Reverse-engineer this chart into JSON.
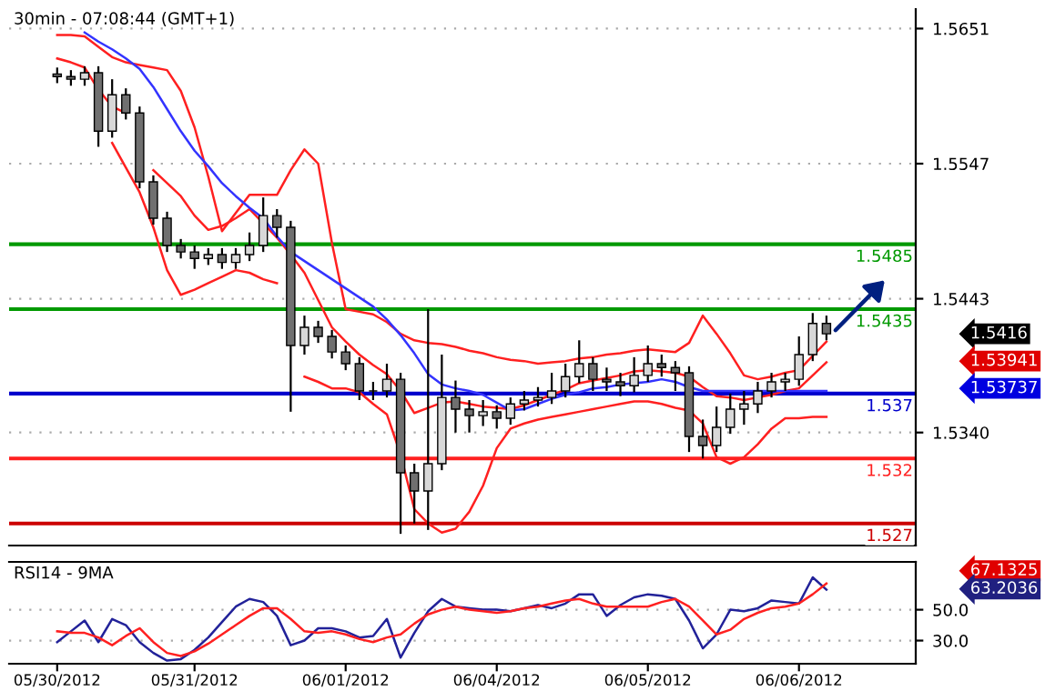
{
  "chart_data": [
    {
      "type": "candlestick",
      "title": "30min - 07:08:44 (GMT+1)",
      "categories": [
        null,
        null,
        null,
        null,
        null,
        null,
        null,
        null,
        null,
        null,
        null,
        null,
        null,
        null,
        null,
        null,
        null,
        null,
        null,
        null,
        null,
        null,
        null,
        null,
        null,
        null,
        null,
        null,
        null,
        null,
        null,
        null,
        null,
        null,
        null,
        null,
        null,
        null,
        null,
        null,
        null,
        null,
        null,
        null,
        null,
        null,
        null,
        null,
        null,
        null,
        null,
        null,
        null,
        null,
        null,
        null,
        null
      ],
      "ohlc": [
        [
          1.5616,
          1.5621,
          1.5609,
          1.5614
        ],
        [
          1.5614,
          1.5619,
          1.5607,
          1.5612
        ],
        [
          1.5612,
          1.5622,
          1.5607,
          1.5617
        ],
        [
          1.5617,
          1.5622,
          1.556,
          1.5572
        ],
        [
          1.5572,
          1.5612,
          1.5567,
          1.56
        ],
        [
          1.56,
          1.5605,
          1.5581,
          1.5586
        ],
        [
          1.5586,
          1.5591,
          1.5528,
          1.5533
        ],
        [
          1.5533,
          1.5538,
          1.55,
          1.5505
        ],
        [
          1.5505,
          1.551,
          1.5479,
          1.5484
        ],
        [
          1.5484,
          1.5489,
          1.5474,
          1.5479
        ],
        [
          1.5479,
          1.5484,
          1.5466,
          1.5474
        ],
        [
          1.5474,
          1.5482,
          1.5469,
          1.5477
        ],
        [
          1.5477,
          1.5482,
          1.5466,
          1.5471
        ],
        [
          1.5471,
          1.5482,
          1.5466,
          1.5477
        ],
        [
          1.5477,
          1.5494,
          1.5472,
          1.5484
        ],
        [
          1.5484,
          1.5521,
          1.5479,
          1.5507
        ],
        [
          1.5507,
          1.5512,
          1.549,
          1.5498
        ],
        [
          1.5498,
          1.5503,
          1.5356,
          1.5407
        ],
        [
          1.5407,
          1.543,
          1.54,
          1.5421
        ],
        [
          1.5421,
          1.5426,
          1.5409,
          1.5414
        ],
        [
          1.5414,
          1.5419,
          1.5397,
          1.5402
        ],
        [
          1.5402,
          1.5407,
          1.5388,
          1.5393
        ],
        [
          1.5393,
          1.5398,
          1.5365,
          1.5372
        ],
        [
          1.5372,
          1.5379,
          1.5365,
          1.5372
        ],
        [
          1.5372,
          1.5393,
          1.5367,
          1.5381
        ],
        [
          1.5381,
          1.5386,
          1.5262,
          1.5309
        ],
        [
          1.5309,
          1.5316,
          1.527,
          1.5295
        ],
        [
          1.5295,
          1.5435,
          1.5265,
          1.5316
        ],
        [
          1.5316,
          1.54,
          1.5311,
          1.5367
        ],
        [
          1.5367,
          1.538,
          1.534,
          1.5358
        ],
        [
          1.5358,
          1.5365,
          1.534,
          1.5353
        ],
        [
          1.5353,
          1.5365,
          1.5345,
          1.5356
        ],
        [
          1.5356,
          1.5361,
          1.5343,
          1.5351
        ],
        [
          1.5351,
          1.5367,
          1.5346,
          1.5362
        ],
        [
          1.5362,
          1.5372,
          1.5357,
          1.5365
        ],
        [
          1.5365,
          1.5375,
          1.536,
          1.5367
        ],
        [
          1.5367,
          1.5386,
          1.5362,
          1.5372
        ],
        [
          1.5372,
          1.5393,
          1.5367,
          1.5383
        ],
        [
          1.5383,
          1.5411,
          1.5378,
          1.5393
        ],
        [
          1.5393,
          1.5398,
          1.5372,
          1.5381
        ],
        [
          1.5381,
          1.539,
          1.5372,
          1.5379
        ],
        [
          1.5379,
          1.5386,
          1.5368,
          1.5376
        ],
        [
          1.5376,
          1.5398,
          1.5371,
          1.5384
        ],
        [
          1.5384,
          1.5407,
          1.5379,
          1.5393
        ],
        [
          1.5393,
          1.54,
          1.5383,
          1.539
        ],
        [
          1.539,
          1.5395,
          1.5372,
          1.5386
        ],
        [
          1.5386,
          1.5391,
          1.5325,
          1.5337
        ],
        [
          1.5337,
          1.535,
          1.532,
          1.533
        ],
        [
          1.533,
          1.536,
          1.5325,
          1.5344
        ],
        [
          1.5344,
          1.537,
          1.5339,
          1.5358
        ],
        [
          1.5358,
          1.5372,
          1.5346,
          1.5362
        ],
        [
          1.5362,
          1.5379,
          1.5355,
          1.5372
        ],
        [
          1.5372,
          1.5386,
          1.5367,
          1.5379
        ],
        [
          1.5379,
          1.5386,
          1.5372,
          1.5381
        ],
        [
          1.5381,
          1.5414,
          1.5376,
          1.54
        ],
        [
          1.54,
          1.5432,
          1.5395,
          1.5424
        ],
        [
          1.5424,
          1.543,
          1.5411,
          1.5416
        ]
      ],
      "series": [
        {
          "type": "line",
          "color": "#ff2020",
          "values": [
            1.5646,
            1.5646,
            1.5645,
            1.5637,
            1.5629,
            1.5625,
            1.5623,
            1.5621,
            1.5619,
            1.5603,
            1.5575,
            1.5537,
            1.5495,
            1.5509,
            1.5523,
            1.5523,
            1.5523,
            1.5542,
            1.5558,
            1.5547,
            1.5486,
            1.5435,
            1.5433,
            1.5431,
            1.5425,
            1.5416,
            1.5411,
            1.5409,
            1.5408,
            1.5406,
            1.5403,
            1.5401,
            1.5398,
            1.5396,
            1.5395,
            1.5393,
            1.5394,
            1.5395,
            1.5397,
            1.5398,
            1.54,
            1.5401,
            1.5403,
            1.5404,
            1.5403,
            1.5402,
            1.5409,
            1.543,
            1.5416,
            1.5401,
            1.5384,
            1.5381,
            1.5383,
            1.5386,
            1.5388,
            1.5399,
            1.541
          ]
        },
        {
          "type": "line",
          "color": "#ff2020",
          "values": [
            1.5628,
            1.5625,
            1.5621,
            1.5604,
            1.5591,
            1.5586,
            null,
            1.5542,
            1.5532,
            1.5522,
            1.5507,
            1.5496,
            1.5499,
            1.5505,
            1.5512,
            1.5501,
            1.549,
            1.5477,
            1.5463,
            1.5442,
            1.5421,
            1.541,
            1.54,
            1.5392,
            1.5385,
            1.5372,
            1.5355,
            1.5359,
            1.5363,
            1.5364,
            1.5362,
            1.536,
            1.5359,
            1.5358,
            1.5361,
            1.5365,
            1.5369,
            1.5373,
            1.5378,
            1.538,
            1.5382,
            1.5384,
            1.5387,
            1.5388,
            1.5387,
            1.5386,
            1.5383,
            1.5375,
            1.5368,
            1.5367,
            1.5365,
            1.5367,
            1.5369,
            1.5372,
            1.5374,
            1.5384,
            1.5394
          ]
        },
        {
          "type": "line",
          "color": "#ff2020",
          "values": [
            null,
            null,
            null,
            null,
            1.5563,
            1.5544,
            1.5525,
            1.5498,
            1.5465,
            1.5446,
            1.545,
            1.5455,
            1.546,
            1.5465,
            1.5463,
            1.5458,
            1.5455,
            null,
            1.5383,
            1.5379,
            1.5374,
            1.5374,
            1.5371,
            1.5362,
            1.5354,
            1.5323,
            1.5281,
            1.527,
            1.5263,
            1.5266,
            1.5279,
            1.5299,
            1.5328,
            1.5343,
            1.5347,
            1.535,
            1.5352,
            1.5354,
            1.5356,
            1.5358,
            1.536,
            1.5362,
            1.5364,
            1.5364,
            1.5362,
            1.5359,
            1.5357,
            1.5347,
            1.5321,
            1.5316,
            1.5321,
            1.5331,
            1.5343,
            1.5351,
            1.5351,
            1.5352,
            1.5352
          ]
        },
        {
          "type": "line",
          "color": "#3333ff",
          "values": [
            null,
            null,
            1.5648,
            1.5641,
            1.5635,
            1.5628,
            1.562,
            1.5606,
            1.5589,
            1.5572,
            1.5557,
            1.5545,
            1.5532,
            1.5522,
            1.5513,
            1.5505,
            1.5491,
            1.5479,
            1.5472,
            1.5465,
            1.5458,
            1.5451,
            1.5444,
            1.5437,
            1.5427,
            1.5415,
            1.5401,
            1.5385,
            1.5377,
            1.5374,
            1.5372,
            1.5369,
            1.5363,
            1.5357,
            1.5358,
            1.5362,
            1.5366,
            1.5369,
            1.5371,
            1.5374,
            1.5375,
            1.5377,
            1.5378,
            1.5379,
            1.5381,
            1.5379,
            1.5375,
            1.5372,
            1.5372,
            1.5372,
            1.5372,
            1.5372,
            1.5372,
            1.5372,
            1.5372,
            1.5372,
            1.5372
          ]
        }
      ],
      "ref_lines": [
        {
          "axis": "y",
          "value": 1.5485,
          "label": "1.5485",
          "color": "#009900"
        },
        {
          "axis": "y",
          "value": 1.5435,
          "label": "1.5435",
          "color": "#009900"
        },
        {
          "axis": "y",
          "value": 1.537,
          "label": "1.537",
          "color": "#0000cc"
        },
        {
          "axis": "y",
          "value": 1.532,
          "label": "1.532",
          "color": "#ff2020"
        },
        {
          "axis": "y",
          "value": 1.527,
          "label": "1.527",
          "color": "#cc0000"
        }
      ],
      "annotations": [
        "1.5416",
        "1.53941",
        "1.53737"
      ],
      "ylim": [
        1.5253,
        1.5666
      ],
      "yticks": [
        1.5651,
        1.5547,
        1.5443,
        {
          "value": 1.534,
          "label": "1.5340"
        }
      ],
      "tick_labels": "y",
      "grid": "y",
      "legend": false
    },
    {
      "type": "line",
      "categories": [
        "05/30/2012",
        null,
        null,
        null,
        null,
        null,
        null,
        null,
        null,
        null,
        "05/31/2012",
        null,
        null,
        null,
        null,
        null,
        null,
        null,
        null,
        null,
        null,
        "06/01/2012",
        null,
        null,
        null,
        null,
        null,
        null,
        null,
        null,
        null,
        null,
        "06/04/2012",
        null,
        null,
        null,
        null,
        null,
        null,
        null,
        null,
        null,
        null,
        "06/05/2012",
        null,
        null,
        null,
        null,
        null,
        null,
        null,
        null,
        null,
        null,
        "06/06/2012",
        null,
        null
      ],
      "series": [
        {
          "color": "#222299",
          "values": [
            29,
            36,
            43,
            29,
            44,
            40,
            29,
            22,
            17,
            18,
            24,
            32,
            42,
            52,
            57,
            55,
            46,
            27,
            30,
            38,
            38,
            36,
            32,
            33,
            44,
            19,
            35,
            49,
            57,
            52,
            51,
            50,
            50,
            49,
            51,
            53,
            51,
            54,
            60,
            60,
            46,
            53,
            58,
            60,
            59,
            57,
            43,
            25,
            34,
            50,
            49,
            51,
            56,
            55,
            54,
            71,
            63
          ]
        },
        {
          "color": "#ff2020",
          "values": [
            36,
            35,
            35,
            32,
            27,
            33,
            38,
            29,
            22,
            20,
            23,
            28,
            34,
            40,
            46,
            51,
            51,
            44,
            36,
            35,
            36,
            34,
            31,
            29,
            32,
            34,
            41,
            47,
            50,
            52,
            50,
            49,
            48,
            49,
            51,
            52,
            54,
            56,
            57,
            54,
            52,
            52,
            52,
            52,
            55,
            57,
            52,
            43,
            34,
            37,
            44,
            48,
            51,
            52,
            54,
            60,
            67
          ]
        }
      ],
      "annotations": [
        "RSI14 - 9MA",
        "67.1325",
        "63.2036"
      ],
      "ylim": [
        15,
        81
      ],
      "yticks": [
        {
          "value": 50,
          "label": "50.0"
        },
        {
          "value": 30,
          "label": "30.0"
        }
      ],
      "grid": "y",
      "legend": false
    }
  ]
}
